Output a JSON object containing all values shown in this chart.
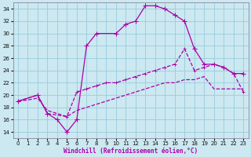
{
  "xlabel": "Windchill (Refroidissement éolien,°C)",
  "background_color": "#cce8f0",
  "grid_color": "#99ccdd",
  "line_color": "#aa00aa",
  "xlim": [
    -0.5,
    23.5
  ],
  "ylim": [
    13,
    35
  ],
  "yticks": [
    14,
    16,
    18,
    20,
    22,
    24,
    26,
    28,
    30,
    32,
    34
  ],
  "xticks": [
    0,
    1,
    2,
    3,
    4,
    5,
    6,
    7,
    8,
    9,
    10,
    11,
    12,
    13,
    14,
    15,
    16,
    17,
    18,
    19,
    20,
    21,
    22,
    23
  ],
  "curve1_x": [
    0,
    2,
    3,
    4,
    5,
    6,
    7,
    8,
    10,
    11,
    12,
    13,
    14,
    15,
    16,
    17,
    18,
    19,
    20,
    21,
    22,
    23
  ],
  "curve1_y": [
    19,
    20,
    17,
    16,
    14,
    16,
    28,
    30,
    30,
    31.5,
    32,
    34.5,
    34.5,
    34,
    33,
    32,
    27.5,
    25,
    25,
    24.5,
    23.5,
    23.5
  ],
  "curve2_x": [
    0,
    2,
    3,
    5,
    6,
    7,
    8,
    9,
    10,
    11,
    12,
    13,
    14,
    15,
    16,
    17,
    18,
    19,
    20,
    21,
    22,
    23
  ],
  "curve2_y": [
    19,
    20,
    17,
    16.5,
    20.5,
    21,
    21.5,
    22,
    22,
    22.5,
    23,
    23.5,
    24,
    24.5,
    25,
    27.5,
    24,
    24.5,
    25,
    24.5,
    23.5,
    20.5
  ],
  "curve3_x": [
    0,
    1,
    2,
    3,
    4,
    5,
    6,
    7,
    8,
    9,
    10,
    11,
    12,
    13,
    14,
    15,
    16,
    17,
    18,
    19,
    20,
    21,
    22,
    23
  ],
  "curve3_y": [
    19,
    19.2,
    19.5,
    17.5,
    17,
    16.5,
    17.5,
    18,
    18.5,
    19,
    19.5,
    20,
    20.5,
    21,
    21.5,
    22,
    22,
    22.5,
    22.5,
    23,
    21,
    21,
    21,
    21
  ]
}
